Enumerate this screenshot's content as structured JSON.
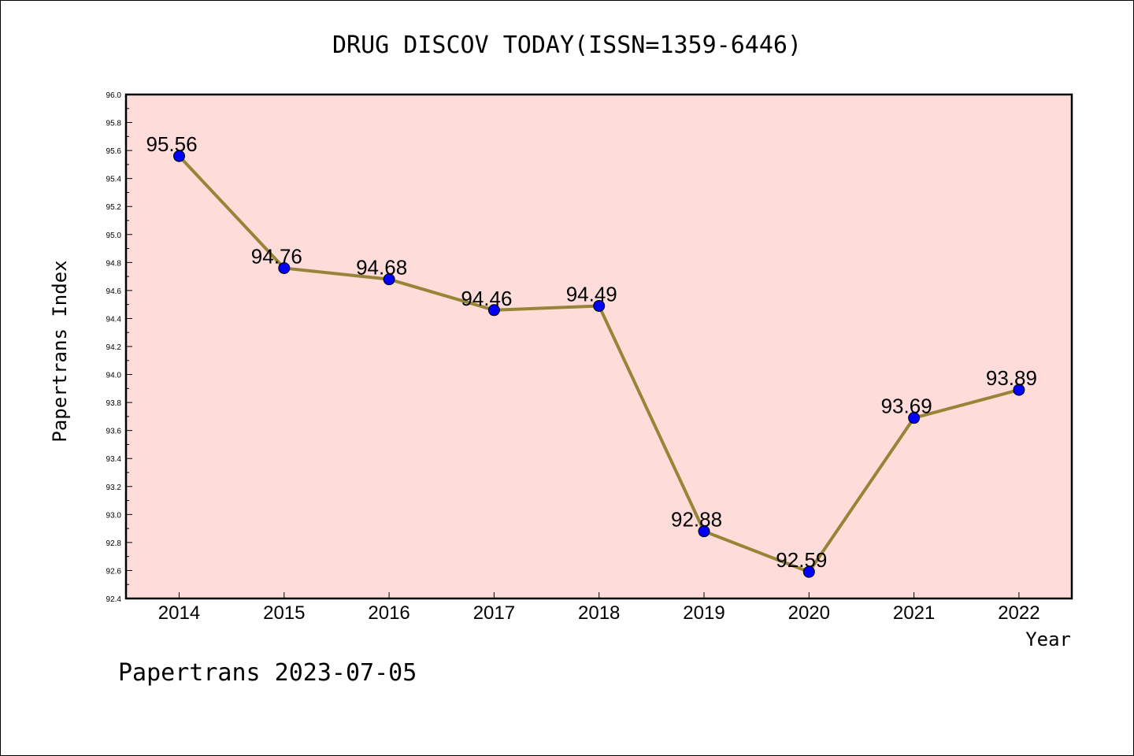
{
  "chart_data": {
    "type": "line",
    "title": "DRUG DISCOV TODAY(ISSN=1359-6446)",
    "xlabel": "Year",
    "ylabel": "Papertrans Index",
    "categories": [
      "2014",
      "2015",
      "2016",
      "2017",
      "2018",
      "2019",
      "2020",
      "2021",
      "2022"
    ],
    "values": [
      95.56,
      94.76,
      94.68,
      94.46,
      94.49,
      92.88,
      92.59,
      93.69,
      93.89
    ],
    "value_labels": [
      "95.56",
      "94.76",
      "94.68",
      "94.46",
      "94.49",
      "92.88",
      "92.59",
      "93.69",
      "93.89"
    ],
    "ylim": [
      92.4,
      96.0
    ],
    "yticks": [
      "92.4",
      "92.6",
      "92.8",
      "93.0",
      "93.2",
      "93.4",
      "93.6",
      "93.8",
      "94.0",
      "94.2",
      "94.4",
      "94.6",
      "94.8",
      "95.0",
      "95.2",
      "95.4",
      "95.6",
      "95.8",
      "96.0"
    ],
    "grid": false,
    "legend": "none",
    "colors": {
      "plot_background": "#fddcda",
      "line": "#968437",
      "marker": "#0000ff"
    }
  },
  "footer": "Papertrans 2023-07-05"
}
